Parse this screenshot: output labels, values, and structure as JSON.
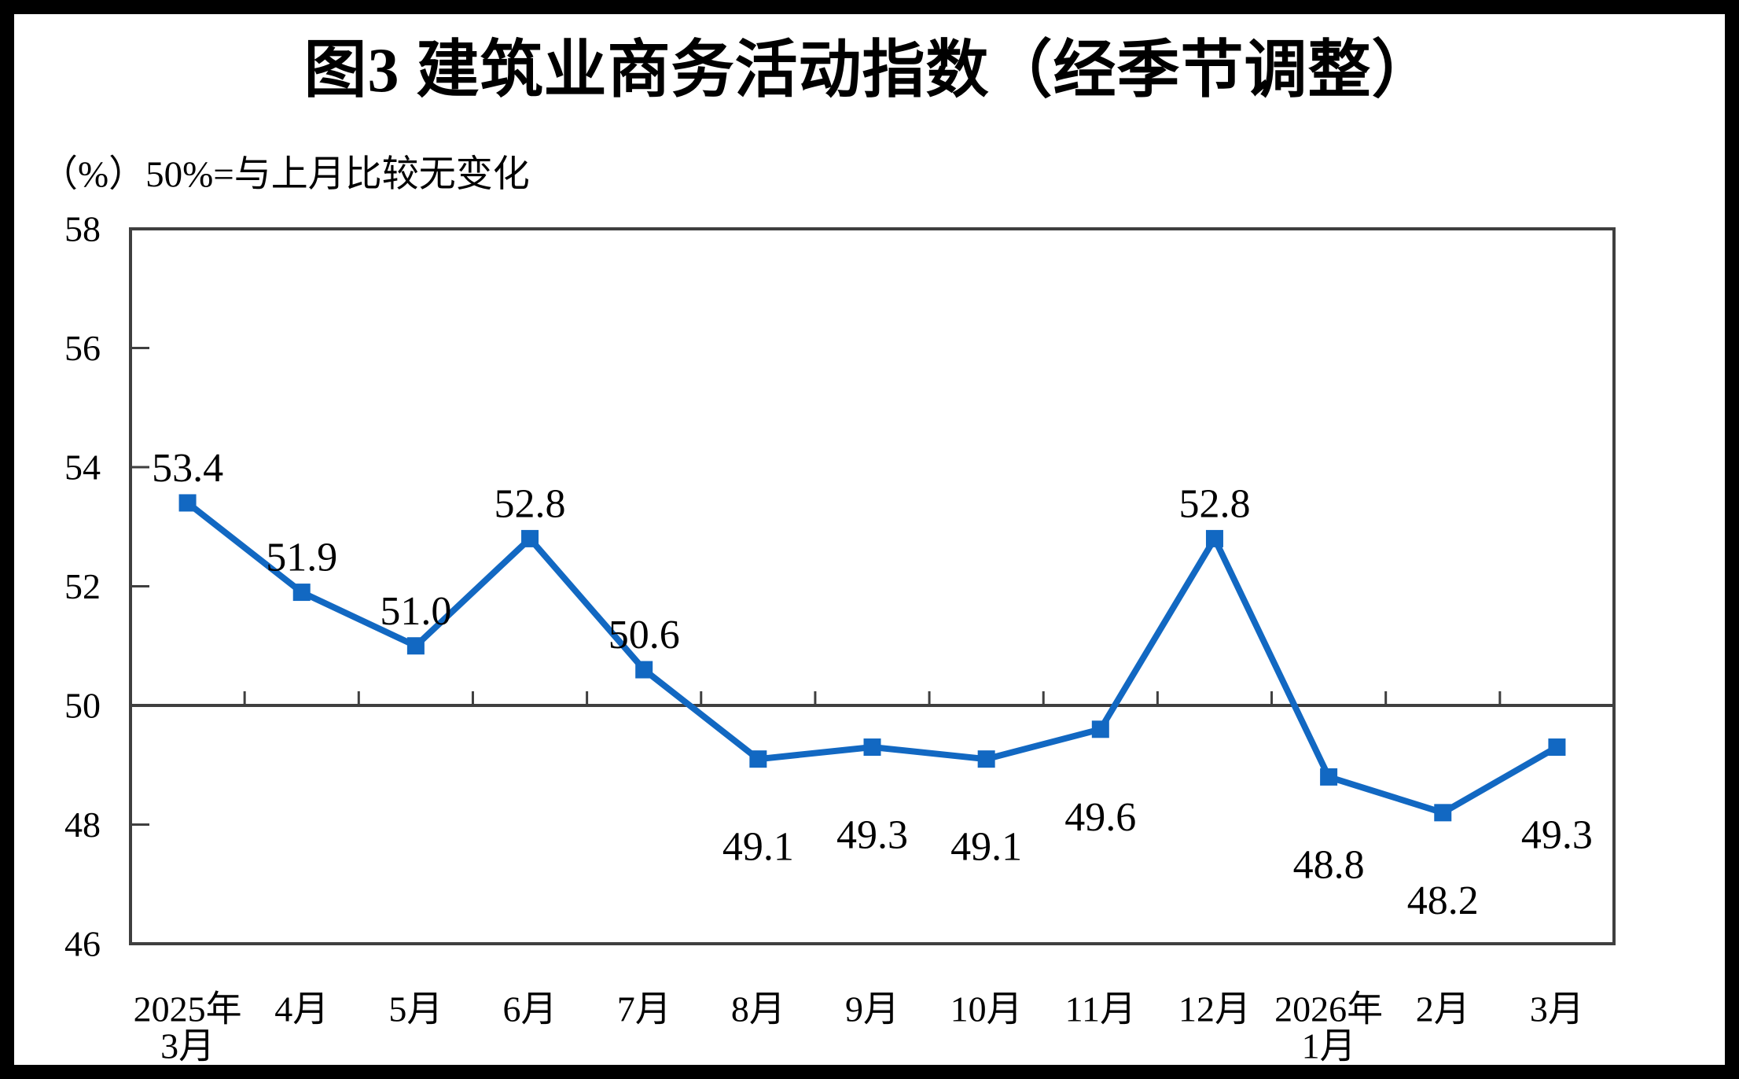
{
  "figure": {
    "title": "图3  建筑业商务活动指数（经季节调整）",
    "unit_note": "（%）50%=与上月比较无变化"
  },
  "chart_data": {
    "type": "line",
    "title": "图3  建筑业商务活动指数（经季节调整）",
    "subtitle": "（%）50%=与上月比较无变化",
    "unit": "%",
    "categories": [
      [
        "2025年",
        "3月"
      ],
      [
        "4月"
      ],
      [
        "5月"
      ],
      [
        "6月"
      ],
      [
        "7月"
      ],
      [
        "8月"
      ],
      [
        "9月"
      ],
      [
        "10月"
      ],
      [
        "11月"
      ],
      [
        "12月"
      ],
      [
        "2026年",
        "1月"
      ],
      [
        "2月"
      ],
      [
        "3月"
      ]
    ],
    "series": [
      {
        "name": "建筑业商务活动指数",
        "values": [
          53.4,
          51.9,
          51.0,
          52.8,
          50.6,
          49.1,
          49.3,
          49.1,
          49.6,
          52.8,
          48.8,
          48.2,
          49.3
        ],
        "labels": [
          "53.4",
          "51.9",
          "51.0",
          "52.8",
          "50.6",
          "49.1",
          "49.3",
          "49.1",
          "49.6",
          "52.8",
          "48.8",
          "48.2",
          "49.3"
        ]
      }
    ],
    "ylim": [
      46,
      58
    ],
    "yticks": [
      46,
      48,
      50,
      52,
      54,
      56,
      58
    ],
    "reference_line": 50,
    "grid": false,
    "legend": "none",
    "marker": "square",
    "colors": {
      "line": "#1268C2",
      "axis": "#3F3F3F",
      "text": "#000000",
      "background": "#FFFFFF",
      "outer_border": "#000000"
    }
  }
}
